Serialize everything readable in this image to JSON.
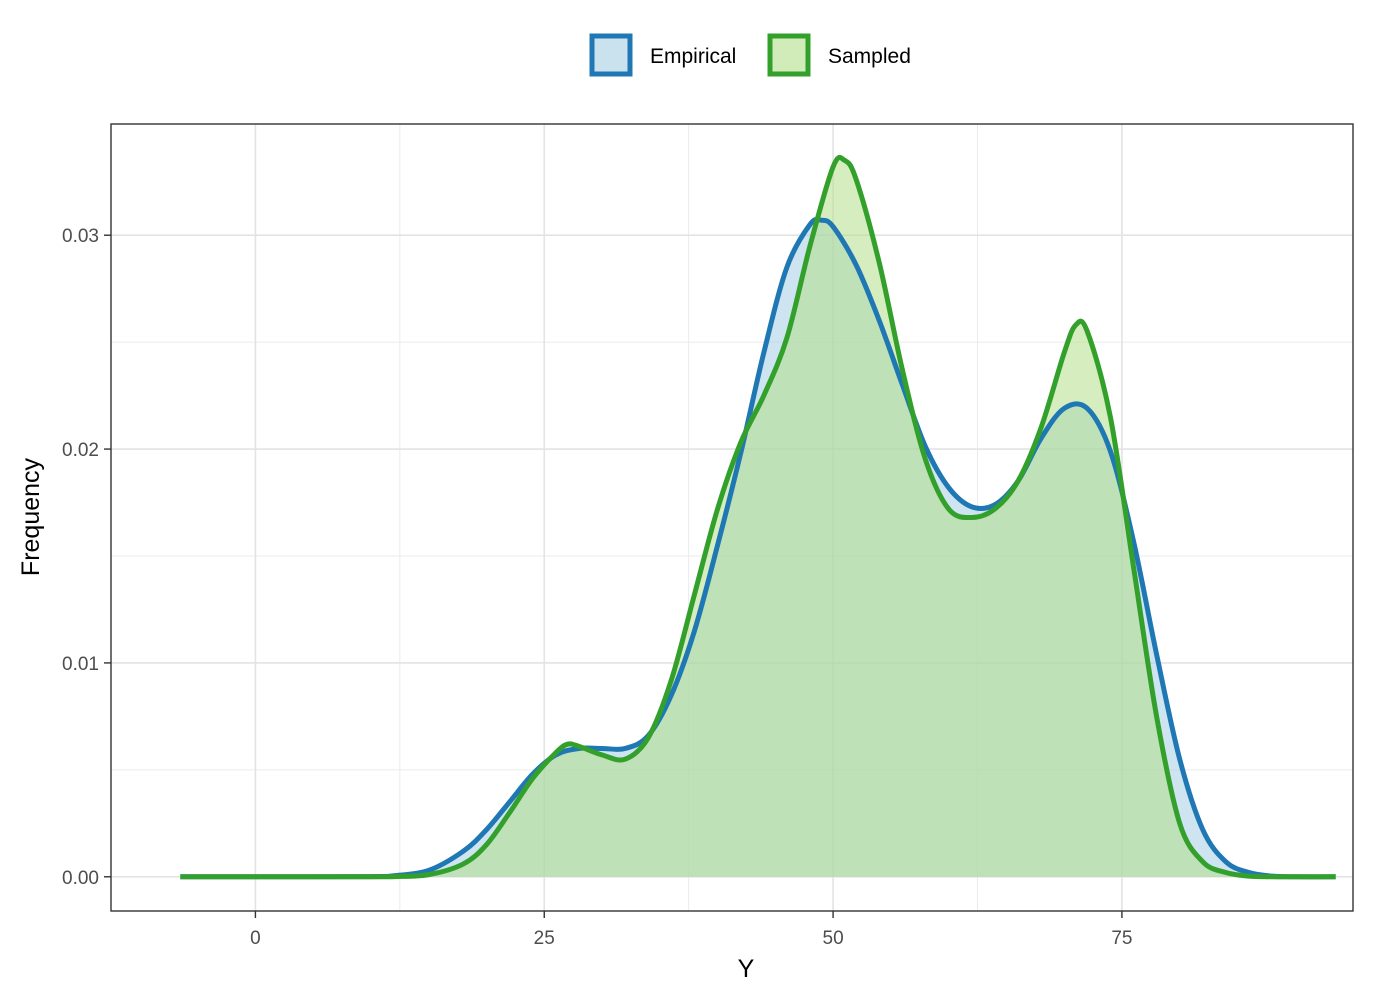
{
  "chart_data": {
    "type": "area",
    "xlabel": "Y",
    "ylabel": "Frequency",
    "xlim": [
      -12.5,
      95
    ],
    "ylim": [
      -0.0016,
      0.0352
    ],
    "x_ticks": [
      0,
      25,
      50,
      75
    ],
    "y_ticks": [
      0.0,
      0.01,
      0.02,
      0.03
    ],
    "y_tick_labels": [
      "0.00",
      "0.01",
      "0.02",
      "0.03"
    ],
    "grid": true,
    "legend_position": "top",
    "series": [
      {
        "name": "Empirical",
        "color": "#1f78b4",
        "fill": "#a6cee3",
        "x": [
          -6.5,
          0,
          10,
          12,
          15,
          18,
          20,
          22,
          24,
          26,
          28,
          30,
          32,
          34,
          36,
          38,
          40,
          42,
          44,
          46,
          48,
          49,
          50,
          52,
          54,
          56,
          58,
          60,
          62,
          64,
          66,
          68,
          70,
          72,
          74,
          76,
          78,
          80,
          82,
          84,
          86,
          88,
          90,
          93.5
        ],
        "y": [
          0,
          0,
          1e-05,
          5e-05,
          0.0003,
          0.0012,
          0.0022,
          0.0035,
          0.0048,
          0.0057,
          0.006,
          0.006,
          0.006,
          0.0066,
          0.0085,
          0.0115,
          0.0155,
          0.0198,
          0.0245,
          0.0285,
          0.0305,
          0.0307,
          0.0304,
          0.0286,
          0.026,
          0.023,
          0.0201,
          0.0182,
          0.0173,
          0.0174,
          0.0185,
          0.0205,
          0.0219,
          0.0219,
          0.0199,
          0.0157,
          0.0104,
          0.0055,
          0.0022,
          0.0007,
          0.0002,
          3e-05,
          0,
          0
        ]
      },
      {
        "name": "Sampled",
        "color": "#33a02c",
        "fill": "#b2df8a",
        "x": [
          -6.5,
          0,
          10,
          12,
          15,
          18,
          20,
          22,
          24,
          26,
          27,
          28,
          30,
          32,
          34,
          36,
          38,
          40,
          42,
          44,
          46,
          48,
          50,
          51,
          52,
          54,
          56,
          58,
          60,
          62,
          64,
          66,
          68,
          70,
          71,
          72,
          74,
          76,
          78,
          80,
          82,
          84,
          86,
          88,
          90,
          93.5
        ],
        "y": [
          0,
          0,
          0,
          1e-05,
          0.0001,
          0.0006,
          0.0015,
          0.003,
          0.0046,
          0.0058,
          0.0062,
          0.0061,
          0.0057,
          0.0055,
          0.0065,
          0.0092,
          0.0132,
          0.0172,
          0.0203,
          0.0225,
          0.0252,
          0.0295,
          0.0332,
          0.0335,
          0.0326,
          0.0287,
          0.0237,
          0.0195,
          0.0172,
          0.0168,
          0.0172,
          0.0185,
          0.021,
          0.0245,
          0.0258,
          0.0255,
          0.0215,
          0.0145,
          0.0075,
          0.0025,
          0.0007,
          0.0002,
          3e-05,
          0,
          0,
          0
        ]
      }
    ]
  }
}
